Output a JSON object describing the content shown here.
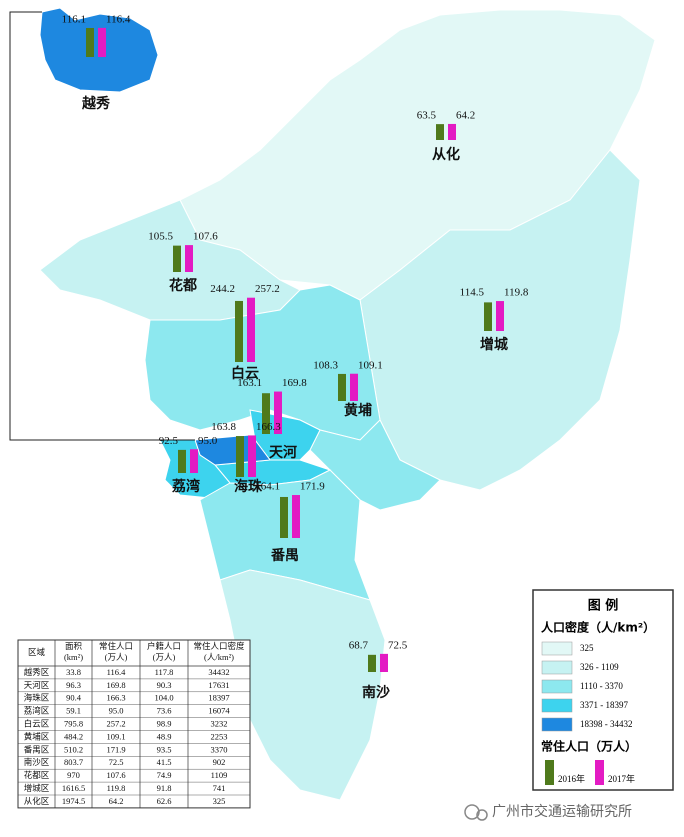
{
  "map": {
    "districts": [
      {
        "name": "越秀",
        "values": [
          116.1,
          116.4
        ],
        "value_labels": [
          "116.1",
          "116.4"
        ]
      },
      {
        "name": "从化",
        "values": [
          63.5,
          64.2
        ],
        "value_labels": [
          "63.5",
          "64.2"
        ]
      },
      {
        "name": "花都",
        "values": [
          105.5,
          107.6
        ],
        "value_labels": [
          "105.5",
          "107.6"
        ]
      },
      {
        "name": "白云",
        "values": [
          244.2,
          257.2
        ],
        "value_labels": [
          "244.2",
          "257.2"
        ]
      },
      {
        "name": "增城",
        "values": [
          114.5,
          119.8
        ],
        "value_labels": [
          "114.5",
          "119.8"
        ]
      },
      {
        "name": "黄埔",
        "values": [
          108.3,
          109.1
        ],
        "value_labels": [
          "108.3",
          "109.1"
        ]
      },
      {
        "name": "天河",
        "values": [
          163.1,
          169.8
        ],
        "value_labels": [
          "163.1",
          "169.8"
        ]
      },
      {
        "name": "海珠",
        "values": [
          163.8,
          166.3
        ],
        "value_labels": [
          "163.8",
          "166.3"
        ]
      },
      {
        "name": "荔湾",
        "values": [
          92.5,
          95.0
        ],
        "value_labels": [
          "92.5",
          "95.0"
        ]
      },
      {
        "name": "番禺",
        "values": [
          164.1,
          171.9
        ],
        "value_labels": [
          "164.1",
          "171.9"
        ]
      },
      {
        "name": "南沙",
        "values": [
          68.7,
          72.5
        ],
        "value_labels": [
          "68.7",
          "72.5"
        ]
      }
    ]
  },
  "legend": {
    "title": "图 例",
    "density_title": "人口密度（人/km²）",
    "density_classes": [
      {
        "label": "325",
        "color": "#e2f8f6"
      },
      {
        "label": "326 - 1109",
        "color": "#c6f2f2"
      },
      {
        "label": "1110 - 3370",
        "color": "#8de8ef"
      },
      {
        "label": "3371 - 18397",
        "color": "#3dd3ee"
      },
      {
        "label": "18398 - 34432",
        "color": "#1e88e0"
      }
    ],
    "population_title": "常住人口（万人）",
    "series": [
      {
        "name": "2016年",
        "color": "#4f7a1c"
      },
      {
        "name": "2017年",
        "color": "#e31bc3"
      }
    ]
  },
  "table": {
    "header": [
      [
        "区域"
      ],
      [
        "面积",
        "(km²)"
      ],
      [
        "常住人口",
        "(万人)"
      ],
      [
        "户籍人口",
        "(万人)"
      ],
      [
        "常住人口密度",
        "(人/km²)"
      ]
    ],
    "rows": [
      [
        "越秀区",
        "33.8",
        "116.4",
        "117.8",
        "34432"
      ],
      [
        "天河区",
        "96.3",
        "169.8",
        "90.3",
        "17631"
      ],
      [
        "海珠区",
        "90.4",
        "166.3",
        "104.0",
        "18397"
      ],
      [
        "荔湾区",
        "59.1",
        "95.0",
        "73.6",
        "16074"
      ],
      [
        "白云区",
        "795.8",
        "257.2",
        "98.9",
        "3232"
      ],
      [
        "黄埔区",
        "484.2",
        "109.1",
        "48.9",
        "2253"
      ],
      [
        "番禺区",
        "510.2",
        "171.9",
        "93.5",
        "3370"
      ],
      [
        "南沙区",
        "803.7",
        "72.5",
        "41.5",
        "902"
      ],
      [
        "花都区",
        "970",
        "107.6",
        "74.9",
        "1109"
      ],
      [
        "增城区",
        "1616.5",
        "119.8",
        "91.8",
        "741"
      ],
      [
        "从化区",
        "1974.5",
        "64.2",
        "62.6",
        "325"
      ]
    ]
  },
  "watermark": "广州市交通运输研究所"
}
